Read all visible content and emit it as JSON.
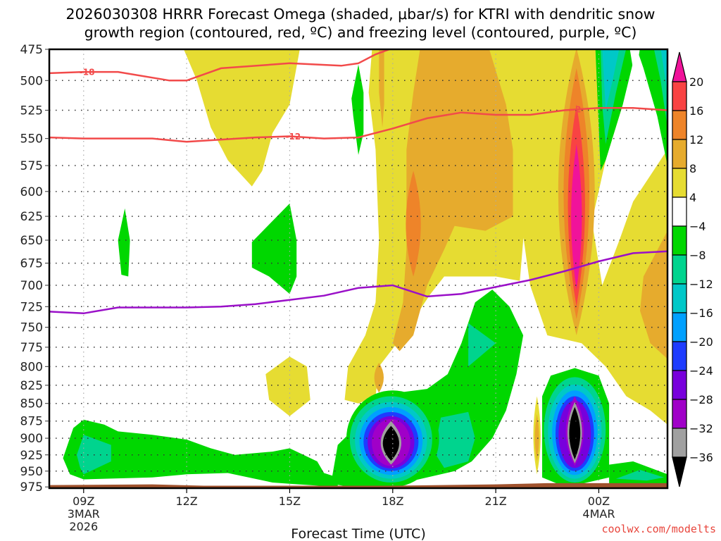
{
  "chart_data": {
    "type": "heatmap",
    "title_line1": "2026030308 HRRR Forecast Omega (shaded, μbar/s) for KTRI with dendritic snow",
    "title_line2": "growth region (contoured, red, ºC) and freezing level (contoured, purple, ºC)",
    "xlabel": "Forecast Time (UTC)",
    "ylabel": "",
    "credit": "coolwx.com/modelts",
    "x_range_hours_utc": [
      8.0,
      26.0
    ],
    "y_axis": {
      "ticks": [
        475,
        500,
        525,
        550,
        575,
        600,
        625,
        650,
        675,
        700,
        725,
        750,
        775,
        800,
        825,
        850,
        875,
        900,
        925,
        950,
        975
      ],
      "range": [
        475,
        977
      ],
      "scale": "log-pressure",
      "inverted": true
    },
    "x_ticks": [
      {
        "hour": 9,
        "label": "09Z",
        "sub": [
          "3MAR",
          "2026"
        ]
      },
      {
        "hour": 12,
        "label": "12Z",
        "sub": []
      },
      {
        "hour": 15,
        "label": "15Z",
        "sub": []
      },
      {
        "hour": 18,
        "label": "18Z",
        "sub": []
      },
      {
        "hour": 21,
        "label": "21Z",
        "sub": []
      },
      {
        "hour": 24,
        "label": "00Z",
        "sub": [
          "4MAR"
        ]
      }
    ],
    "grid": true,
    "colorbar": {
      "position": "right",
      "levels": [
        {
          "label": "20",
          "color": "#f0139a",
          "kind": "top-arrow"
        },
        {
          "label": "16",
          "color": "#f94343"
        },
        {
          "label": "12",
          "color": "#ee8429"
        },
        {
          "label": "8",
          "color": "#e6ab2d"
        },
        {
          "label": "4",
          "color": "#e6dc32"
        },
        {
          "label": "-4",
          "color": "#ffffff"
        },
        {
          "label": "-8",
          "color": "#00d700"
        },
        {
          "label": "-12",
          "color": "#00d48e"
        },
        {
          "label": "-16",
          "color": "#00c8c8"
        },
        {
          "label": "-20",
          "color": "#00a0ff"
        },
        {
          "label": "-24",
          "color": "#1e3cff"
        },
        {
          "label": "-28",
          "color": "#7800dc"
        },
        {
          "label": "-32",
          "color": "#a000c8"
        },
        {
          "label": "-36",
          "color": "#a0a0a0"
        },
        {
          "label": "",
          "color": "#000000",
          "kind": "bottom-arrow"
        }
      ]
    },
    "contours": [
      {
        "name": "dgz-minus18",
        "label": "-18",
        "color": "#f24a4a",
        "points": [
          [
            8.0,
            494
          ],
          [
            9.0,
            493
          ],
          [
            10.0,
            493
          ],
          [
            11.5,
            500
          ],
          [
            12.0,
            500
          ],
          [
            13.0,
            490
          ],
          [
            15.0,
            486
          ],
          [
            16.5,
            488
          ],
          [
            17.0,
            486
          ],
          [
            17.5,
            479
          ],
          [
            18.0,
            474
          ]
        ]
      },
      {
        "name": "dgz-minus12",
        "label": "-12",
        "color": "#f24a4a",
        "points": [
          [
            8.0,
            549
          ],
          [
            9.0,
            550
          ],
          [
            10.0,
            550
          ],
          [
            11.0,
            550
          ],
          [
            12.0,
            553
          ],
          [
            14.0,
            549
          ],
          [
            15.0,
            548
          ],
          [
            16.0,
            550
          ],
          [
            17.0,
            549
          ],
          [
            18.0,
            541
          ],
          [
            19.0,
            532
          ],
          [
            20.0,
            527
          ],
          [
            21.0,
            529
          ],
          [
            22.0,
            529
          ],
          [
            23.0,
            525
          ],
          [
            24.0,
            523
          ],
          [
            25.0,
            523
          ],
          [
            26.0,
            525
          ]
        ]
      },
      {
        "name": "freezing-level",
        "label": "0",
        "color": "#9a10c8",
        "points": [
          [
            8.0,
            731
          ],
          [
            9.0,
            733
          ],
          [
            10.0,
            726
          ],
          [
            12.0,
            726
          ],
          [
            13.0,
            725
          ],
          [
            14.0,
            722
          ],
          [
            15.0,
            717
          ],
          [
            16.0,
            712
          ],
          [
            17.0,
            703
          ],
          [
            18.0,
            700
          ],
          [
            19.0,
            713
          ],
          [
            20.0,
            710
          ],
          [
            21.0,
            702
          ],
          [
            22.0,
            694
          ],
          [
            23.0,
            684
          ],
          [
            24.0,
            673
          ],
          [
            25.0,
            664
          ],
          [
            26.0,
            662
          ]
        ]
      }
    ],
    "omega_features": [
      {
        "name": "lift-core-18z",
        "center_hour": 18.0,
        "center_hPa": 900,
        "min_value": -36,
        "color_at_core": "#000000"
      },
      {
        "name": "lift-core-2330z",
        "center_hour": 23.3,
        "center_hPa": 880,
        "min_value": -36,
        "color_at_core": "#000000"
      },
      {
        "name": "sinking-core-2330z",
        "center_hour": 23.3,
        "center_hPa": 620,
        "max_value": 20,
        "color_at_core": "#f0139a"
      },
      {
        "name": "sinking-band-1830z",
        "center_hour": 18.8,
        "center_hPa": 640,
        "max_value": 16,
        "color_at_core": "#ee8429"
      }
    ],
    "ground_color": "#a0522d"
  }
}
